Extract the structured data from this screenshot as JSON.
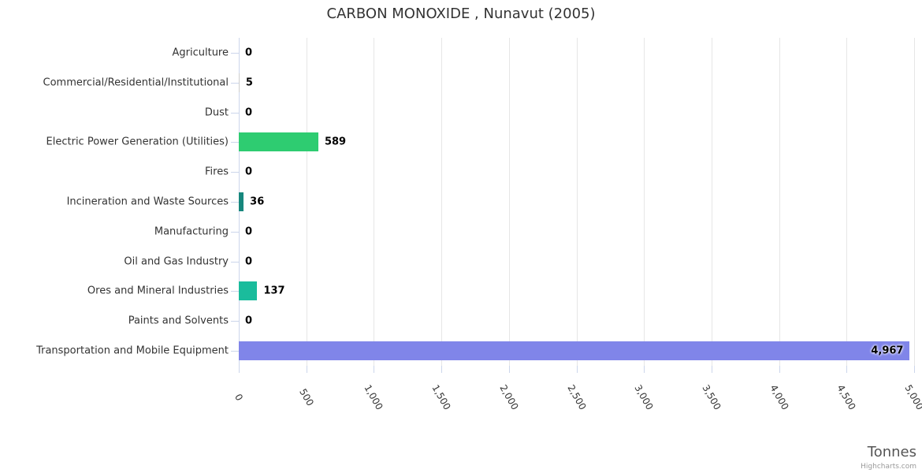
{
  "chart_data": {
    "type": "bar",
    "title": "CARBON MONOXIDE , Nunavut (2005)",
    "categories": [
      "Agriculture",
      "Commercial/Residential/Institutional",
      "Dust",
      "Electric Power Generation (Utilities)",
      "Fires",
      "Incineration and Waste Sources",
      "Manufacturing",
      "Oil and Gas Industry",
      "Ores and Mineral Industries",
      "Paints and Solvents",
      "Transportation and Mobile Equipment"
    ],
    "values": [
      0,
      5,
      0,
      589,
      0,
      36,
      0,
      0,
      137,
      0,
      4967
    ],
    "value_labels": [
      "0",
      "5",
      "0",
      "589",
      "0",
      "36",
      "0",
      "0",
      "137",
      "0",
      "4,967"
    ],
    "bar_colors": [
      null,
      null,
      null,
      "#2ecc71",
      null,
      "#17877d",
      null,
      null,
      "#1abc9c",
      null,
      "#8085e9"
    ],
    "xlabel": "Tonnes",
    "xlim": [
      0,
      5000
    ],
    "xtick_values": [
      0,
      500,
      1000,
      1500,
      2000,
      2500,
      3000,
      3500,
      4000,
      4500,
      5000
    ],
    "xtick_labels": [
      "0",
      "500",
      "1,000",
      "1,500",
      "2,000",
      "2,500",
      "3,000",
      "3,500",
      "4,000",
      "4,500",
      "5,000"
    ],
    "grid": true,
    "legend": "none",
    "credit": "Highcharts.com",
    "style": {
      "title_color": "#333333",
      "label_color": "#333333",
      "data_label_color": "#000000",
      "grid_color": "#e6e6e6",
      "axis_line_color": "#ccd6eb",
      "xaxis_title_color": "#555555",
      "credit_color": "#999999",
      "default_bar_color": "#cccccc"
    }
  }
}
